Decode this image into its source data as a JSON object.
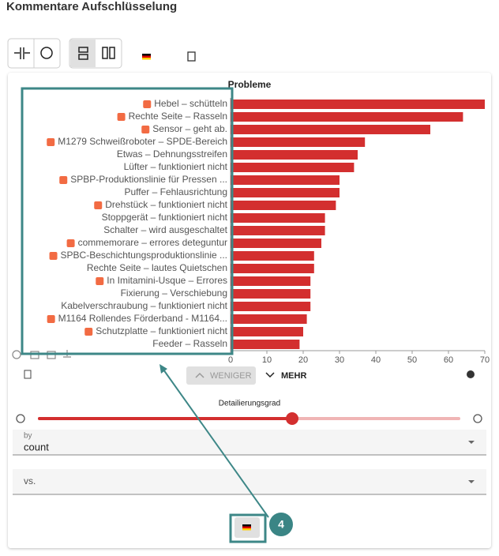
{
  "header": {
    "title": "Kommentare Aufschlüsselung"
  },
  "chart_data": {
    "type": "bar",
    "orientation": "horizontal",
    "title": "Probleme",
    "categories": [
      "Hebel – schütteln",
      "Rechte Seite – Rasseln",
      "Sensor – geht ab.",
      "M1279 Schweißroboter – SPDE-Bereich",
      "Etwas – Dehnungsstreifen",
      "Lüfter – funktioniert nicht",
      "SPBP-Produktionslinie für Pressen ...",
      "Puffer – Fehlausrichtung",
      "Drehstück – funktioniert nicht",
      "Stoppgerät – funktioniert nicht",
      "Schalter – wird ausgeschaltet",
      "commemorare – errores deteguntur",
      "SPBC-Beschichtungsproduktionslinie ...",
      "Rechte Seite – lautes Quietschen",
      "In Imitamini-Usque – Errores",
      "Fixierung – Verschiebung",
      "Kabelverschraubung – funktioniert nicht",
      "M1164 Rollendes Förderband - M1164...",
      "Schutzplatte – funktioniert nicht",
      "Feeder – Rasseln"
    ],
    "values": [
      70,
      64,
      55,
      37,
      35,
      34,
      30,
      30,
      29,
      26,
      26,
      25,
      23,
      23,
      22,
      22,
      22,
      21,
      20,
      19
    ],
    "color": "#d32f2f",
    "xlim": [
      0,
      70
    ],
    "xticks": [
      0,
      10,
      20,
      30,
      40,
      50,
      60,
      70
    ]
  },
  "controls": {
    "less": "WENIGER",
    "more": "MEHR",
    "slider_label": "Detailierungsgrad",
    "by_label": "by",
    "by_value": "count",
    "vs_label": "vs."
  },
  "annotation": {
    "callout": "4"
  }
}
